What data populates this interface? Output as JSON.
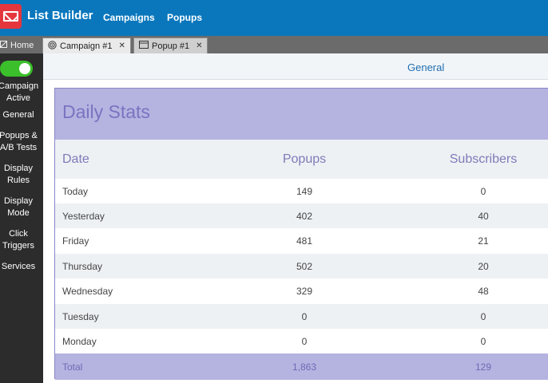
{
  "app": {
    "title": "List Builder",
    "nav": [
      "Campaigns",
      "Popups"
    ]
  },
  "tabs": [
    {
      "label": "Home",
      "icon": "home-icon",
      "closable": false
    },
    {
      "label": "Campaign #1",
      "icon": "target-icon",
      "closable": true,
      "active": true
    },
    {
      "label": "Popup #1",
      "icon": "window-icon",
      "closable": true
    }
  ],
  "sidebar": {
    "toggle_on": true,
    "items": [
      "Campaign Active",
      "General",
      "Popups & A/B Tests",
      "Display Rules",
      "Display Mode",
      "Click Triggers",
      "Services"
    ]
  },
  "main": {
    "header_link": "General",
    "panel_title": "Daily Stats",
    "columns": [
      "Date",
      "Popups",
      "Subscribers"
    ],
    "rows": [
      {
        "date": "Today",
        "popups": "149",
        "subscribers": "0"
      },
      {
        "date": "Yesterday",
        "popups": "402",
        "subscribers": "40"
      },
      {
        "date": "Friday",
        "popups": "481",
        "subscribers": "21"
      },
      {
        "date": "Thursday",
        "popups": "502",
        "subscribers": "20"
      },
      {
        "date": "Wednesday",
        "popups": "329",
        "subscribers": "48"
      },
      {
        "date": "Tuesday",
        "popups": "0",
        "subscribers": "0"
      },
      {
        "date": "Monday",
        "popups": "0",
        "subscribers": "0"
      }
    ],
    "total": {
      "label": "Total",
      "popups": "1,863",
      "subscribers": "129"
    }
  },
  "colors": {
    "topbar": "#0a77bd",
    "accent": "#b5b3e0",
    "toggle_on": "#3bbf2a",
    "sidebar": "#2c2c2c"
  }
}
